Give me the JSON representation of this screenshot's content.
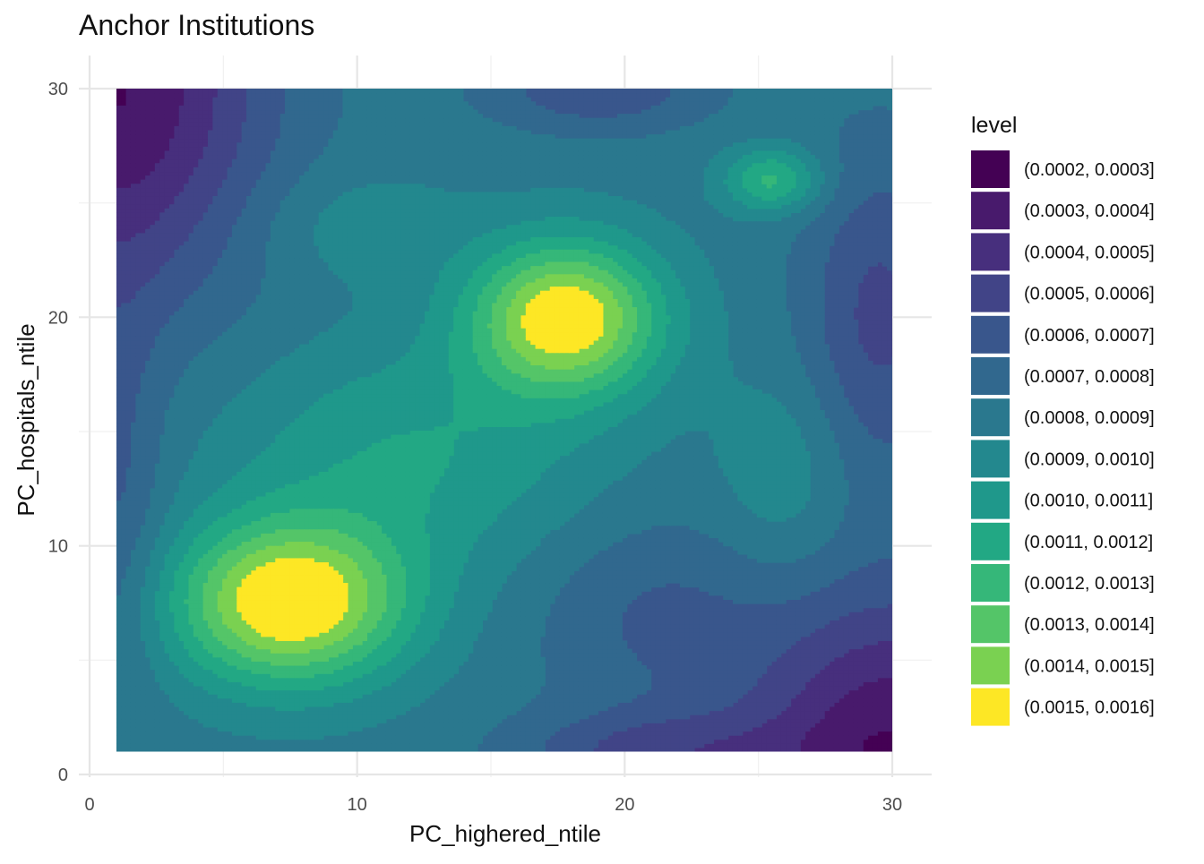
{
  "chart_data": {
    "type": "heatmap",
    "subtype": "filled-contour",
    "title": "Anchor Institutions",
    "xlabel": "PC_highered_ntile",
    "ylabel": "PC_hospitals_ntile",
    "xlim": [
      0,
      30
    ],
    "ylim": [
      0,
      30
    ],
    "data_extent": {
      "x": [
        1,
        30
      ],
      "y": [
        1,
        30
      ]
    },
    "x_ticks": [
      0,
      10,
      20,
      30
    ],
    "y_ticks": [
      0,
      10,
      20,
      30
    ],
    "grid": true,
    "legend": {
      "title": "level",
      "position": "right",
      "entries": [
        {
          "label": "(0.0002, 0.0003]",
          "color": "#440154"
        },
        {
          "label": "(0.0003, 0.0004]",
          "color": "#481A6C"
        },
        {
          "label": "(0.0004, 0.0005]",
          "color": "#472F7D"
        },
        {
          "label": "(0.0005, 0.0006]",
          "color": "#414487"
        },
        {
          "label": "(0.0006, 0.0007]",
          "color": "#39568C"
        },
        {
          "label": "(0.0007, 0.0008]",
          "color": "#31688E"
        },
        {
          "label": "(0.0008, 0.0009]",
          "color": "#2A788E"
        },
        {
          "label": "(0.0009, 0.0010]",
          "color": "#23888E"
        },
        {
          "label": "(0.0010, 0.0011]",
          "color": "#1F988B"
        },
        {
          "label": "(0.0011, 0.0012]",
          "color": "#22A884"
        },
        {
          "label": "(0.0012, 0.0013]",
          "color": "#35B779"
        },
        {
          "label": "(0.0013, 0.0014]",
          "color": "#54C568"
        },
        {
          "label": "(0.0014, 0.0015]",
          "color": "#7AD151"
        },
        {
          "label": "(0.0015, 0.0016]",
          "color": "#FDE725"
        }
      ]
    },
    "levels": [
      0.0002,
      0.0003,
      0.0004,
      0.0005,
      0.0006,
      0.0007,
      0.0008,
      0.0009,
      0.001,
      0.0011,
      0.0012,
      0.0013,
      0.0014,
      0.0015,
      0.0016
    ],
    "density_peaks": [
      {
        "x": 7.5,
        "y": 7.5,
        "level": 0.0016
      },
      {
        "x": 17.8,
        "y": 20,
        "level": 0.0016
      },
      {
        "x": 25.5,
        "y": 26,
        "level": 0.0013
      }
    ],
    "density_minima": [
      {
        "x": 1,
        "y": 30,
        "level": 0.0002
      },
      {
        "x": 30,
        "y": 1,
        "level": 0.0002
      }
    ]
  }
}
